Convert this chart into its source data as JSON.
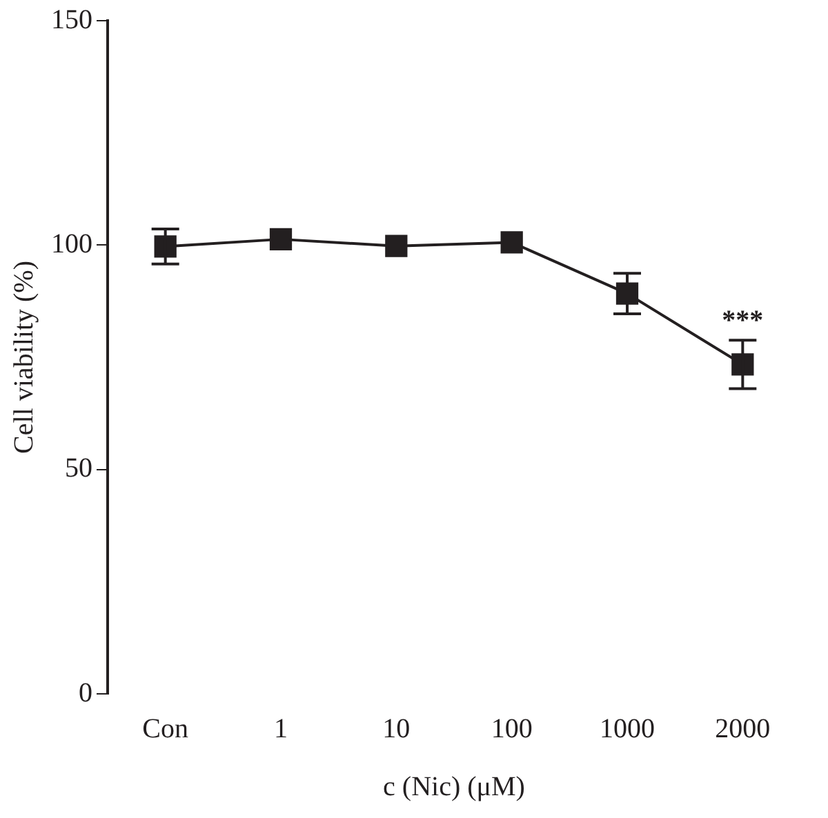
{
  "chart_data": {
    "type": "line",
    "xlabel": "c (Nic) (μM)",
    "ylabel": "Cell viability (%)",
    "categories": [
      "Con",
      "1",
      "10",
      "100",
      "1000",
      "2000"
    ],
    "series": [
      {
        "color": "#231f20",
        "values": [
          99.7,
          101.3,
          99.8,
          100.6,
          89.2,
          73.4
        ],
        "errors": [
          3.9,
          null,
          null,
          null,
          4.5,
          5.4
        ]
      }
    ],
    "ylim": [
      0,
      150
    ],
    "yticks": [
      0,
      50,
      100,
      150
    ],
    "grid": false,
    "legend": false,
    "marker": "square",
    "line_style": "solid",
    "annotations": [
      "***"
    ]
  }
}
